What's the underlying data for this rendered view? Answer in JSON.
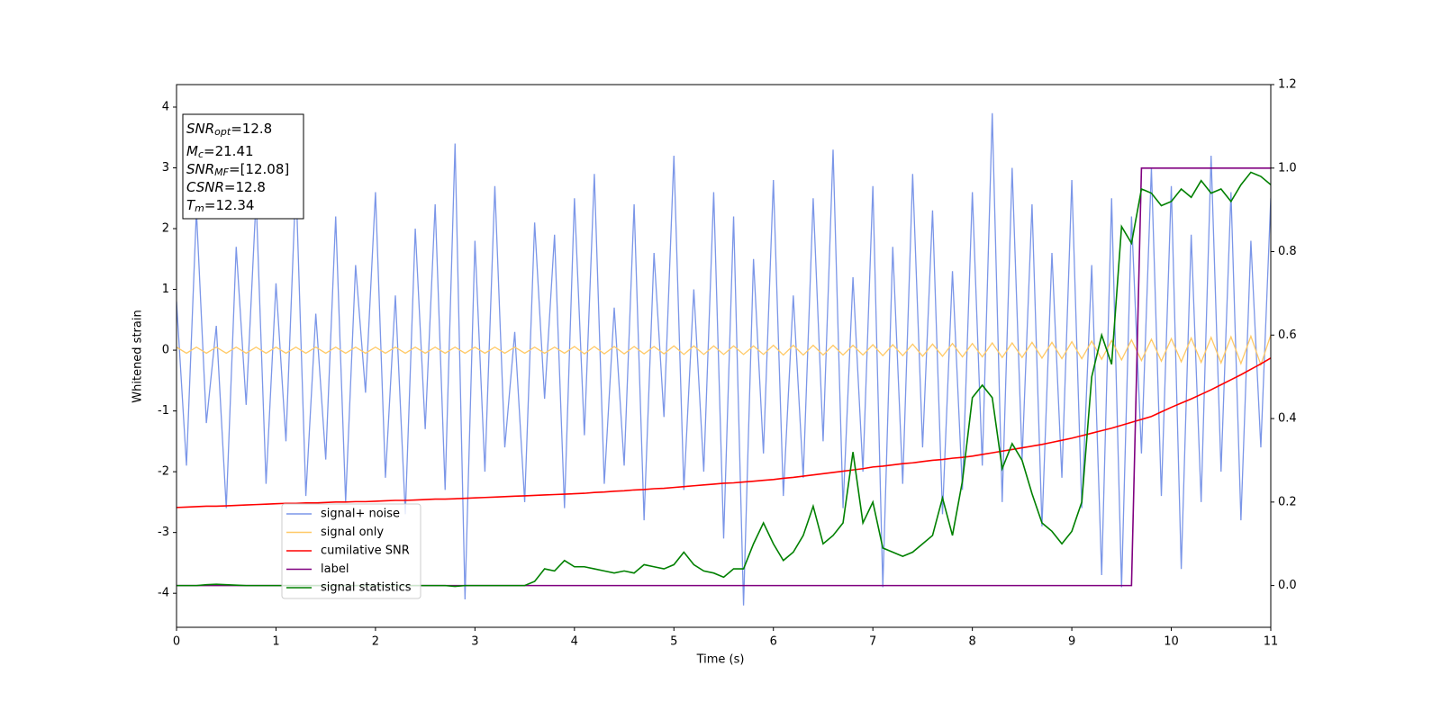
{
  "chart_data": {
    "type": "line",
    "xlabel": "Time (s)",
    "ylabel": "Whitened strain",
    "x": [
      0,
      0.1,
      0.2,
      0.3,
      0.4,
      0.5,
      0.6,
      0.7,
      0.8,
      0.9,
      1,
      1.1,
      1.2,
      1.3,
      1.4,
      1.5,
      1.6,
      1.7,
      1.8,
      1.9,
      2,
      2.1,
      2.2,
      2.3,
      2.4,
      2.5,
      2.6,
      2.7,
      2.8,
      2.9,
      3,
      3.1,
      3.2,
      3.3,
      3.4,
      3.5,
      3.6,
      3.7,
      3.8,
      3.9,
      4,
      4.1,
      4.2,
      4.3,
      4.4,
      4.5,
      4.6,
      4.7,
      4.8,
      4.9,
      5,
      5.1,
      5.2,
      5.3,
      5.4,
      5.5,
      5.6,
      5.7,
      5.8,
      5.9,
      6,
      6.1,
      6.2,
      6.3,
      6.4,
      6.5,
      6.6,
      6.7,
      6.8,
      6.9,
      7,
      7.1,
      7.2,
      7.3,
      7.4,
      7.5,
      7.6,
      7.7,
      7.8,
      7.9,
      8,
      8.1,
      8.2,
      8.3,
      8.4,
      8.5,
      8.6,
      8.7,
      8.8,
      8.9,
      9,
      9.1,
      9.2,
      9.3,
      9.4,
      9.5,
      9.6,
      9.7,
      9.8,
      9.9,
      10,
      10.1,
      10.2,
      10.3,
      10.4,
      10.5,
      10.6,
      10.7,
      10.8,
      10.9,
      11
    ],
    "xlim": [
      0,
      11
    ],
    "xticks": [
      0,
      1,
      2,
      3,
      4,
      5,
      6,
      7,
      8,
      9,
      10,
      11
    ],
    "ylim": [
      -4.56,
      4.37
    ],
    "yticks": [
      -4,
      -3,
      -2,
      -1,
      0,
      1,
      2,
      3,
      4
    ],
    "y2lim": [
      -0.1,
      1.2
    ],
    "y2ticks": [
      {
        "value": 0.0,
        "label": "0.0"
      },
      0.2,
      0.4,
      0.6,
      0.8,
      {
        "value": 1.0,
        "label": "1.0"
      },
      1.2
    ],
    "legend": "lower left",
    "series": [
      {
        "name": "signal+ noise",
        "color": "#7b96e8",
        "values": [
          0.8,
          -1.9,
          2.3,
          -1.2,
          0.4,
          -2.6,
          1.7,
          -0.9,
          2.5,
          -2.2,
          1.1,
          -1.5,
          2.8,
          -2.4,
          0.6,
          -1.8,
          2.2,
          -2.5,
          1.4,
          -0.7,
          2.6,
          -2.1,
          0.9,
          -2.7,
          2.0,
          -1.3,
          2.4,
          -2.3,
          3.4,
          -4.1,
          1.8,
          -2.0,
          2.7,
          -1.6,
          0.3,
          -2.5,
          2.1,
          -0.8,
          1.9,
          -2.6,
          2.5,
          -1.4,
          2.9,
          -2.2,
          0.7,
          -1.9,
          2.4,
          -2.8,
          1.6,
          -1.1,
          3.2,
          -2.3,
          1.0,
          -2.0,
          2.6,
          -3.1,
          2.2,
          -4.2,
          1.5,
          -1.7,
          2.8,
          -2.4,
          0.9,
          -2.1,
          2.5,
          -1.5,
          3.3,
          -2.6,
          1.2,
          -2.0,
          2.7,
          -3.9,
          1.7,
          -2.2,
          2.9,
          -1.6,
          2.3,
          -2.7,
          1.3,
          -2.3,
          2.6,
          -1.9,
          3.9,
          -2.5,
          3.0,
          -1.8,
          2.4,
          -2.9,
          1.6,
          -2.1,
          2.8,
          -2.6,
          1.4,
          -3.7,
          2.5,
          -3.9,
          2.2,
          -1.7,
          3.0,
          -2.4,
          2.7,
          -3.6,
          1.9,
          -2.5,
          3.2,
          -2.0,
          2.6,
          -2.8,
          1.8,
          -1.6,
          2.5
        ]
      },
      {
        "name": "signal only",
        "color": "#ffc966",
        "values": [
          0.05,
          -0.05,
          0.05,
          -0.05,
          0.05,
          -0.05,
          0.05,
          -0.05,
          0.05,
          -0.05,
          0.05,
          -0.05,
          0.05,
          -0.05,
          0.05,
          -0.05,
          0.05,
          -0.05,
          0.05,
          -0.05,
          0.05,
          -0.05,
          0.05,
          -0.05,
          0.05,
          -0.05,
          0.05,
          -0.05,
          0.05,
          -0.05,
          0.05,
          -0.05,
          0.05,
          -0.05,
          0.05,
          -0.05,
          0.05,
          -0.05,
          0.05,
          -0.05,
          0.06,
          -0.06,
          0.06,
          -0.06,
          0.06,
          -0.06,
          0.06,
          -0.06,
          0.06,
          -0.06,
          0.07,
          -0.07,
          0.07,
          -0.07,
          0.07,
          -0.07,
          0.07,
          -0.07,
          0.07,
          -0.07,
          0.08,
          -0.08,
          0.08,
          -0.08,
          0.08,
          -0.08,
          0.08,
          -0.08,
          0.08,
          -0.08,
          0.09,
          -0.09,
          0.09,
          -0.09,
          0.1,
          -0.1,
          0.1,
          -0.1,
          0.11,
          -0.11,
          0.11,
          -0.11,
          0.12,
          -0.12,
          0.12,
          -0.12,
          0.13,
          -0.13,
          0.13,
          -0.14,
          0.14,
          -0.14,
          0.15,
          -0.15,
          0.16,
          -0.16,
          0.17,
          -0.17,
          0.18,
          -0.18,
          0.19,
          -0.19,
          0.2,
          -0.2,
          0.21,
          -0.21,
          0.22,
          -0.22,
          0.23,
          -0.24,
          0.25
        ]
      },
      {
        "name": "cumilative SNR",
        "color": "#ff0000",
        "axis": "y2",
        "values": [
          0.187,
          0.188,
          0.189,
          0.19,
          0.19,
          0.191,
          0.192,
          0.193,
          0.194,
          0.195,
          0.196,
          0.197,
          0.197,
          0.198,
          0.198,
          0.199,
          0.2,
          0.2,
          0.201,
          0.201,
          0.202,
          0.203,
          0.204,
          0.204,
          0.205,
          0.206,
          0.207,
          0.207,
          0.208,
          0.209,
          0.21,
          0.211,
          0.212,
          0.213,
          0.214,
          0.215,
          0.216,
          0.217,
          0.218,
          0.219,
          0.22,
          0.221,
          0.223,
          0.224,
          0.226,
          0.227,
          0.229,
          0.23,
          0.232,
          0.233,
          0.235,
          0.237,
          0.239,
          0.241,
          0.243,
          0.245,
          0.246,
          0.248,
          0.25,
          0.252,
          0.254,
          0.257,
          0.259,
          0.262,
          0.265,
          0.268,
          0.271,
          0.274,
          0.277,
          0.28,
          0.284,
          0.286,
          0.289,
          0.292,
          0.294,
          0.297,
          0.3,
          0.302,
          0.305,
          0.307,
          0.31,
          0.314,
          0.318,
          0.322,
          0.326,
          0.33,
          0.334,
          0.338,
          0.343,
          0.348,
          0.353,
          0.359,
          0.365,
          0.371,
          0.377,
          0.384,
          0.391,
          0.398,
          0.405,
          0.416,
          0.427,
          0.437,
          0.447,
          0.458,
          0.469,
          0.481,
          0.493,
          0.505,
          0.518,
          0.531,
          0.545
        ]
      },
      {
        "name": "label",
        "color": "#800080",
        "axis": "y2",
        "values": [
          0,
          0,
          0,
          0,
          0,
          0,
          0,
          0,
          0,
          0,
          0,
          0,
          0,
          0,
          0,
          0,
          0,
          0,
          0,
          0,
          0,
          0,
          0,
          0,
          0,
          0,
          0,
          0,
          0,
          0,
          0,
          0,
          0,
          0,
          0,
          0,
          0,
          0,
          0,
          0,
          0,
          0,
          0,
          0,
          0,
          0,
          0,
          0,
          0,
          0,
          0,
          0,
          0,
          0,
          0,
          0,
          0,
          0,
          0,
          0,
          0,
          0,
          0,
          0,
          0,
          0,
          0,
          0,
          0,
          0,
          0,
          0,
          0,
          0,
          0,
          0,
          0,
          0,
          0,
          0,
          0,
          0,
          0,
          0,
          0,
          0,
          0,
          0,
          0,
          0,
          0,
          0,
          0,
          0,
          0,
          0,
          0,
          1,
          1,
          1,
          1,
          1,
          1,
          1,
          1,
          1,
          1,
          1,
          1,
          1,
          1
        ]
      },
      {
        "name": "signal statistics",
        "color": "#008000",
        "axis": "y2",
        "values": [
          0.0,
          0.0,
          0.0,
          0.002,
          0.003,
          0.002,
          0.001,
          0.0,
          0.0,
          0.0,
          0.0,
          0.0,
          0.0,
          0.0,
          0.0,
          0.0,
          0.0,
          0.0,
          0.0,
          0.0,
          0.0,
          0.0,
          0.0,
          0.0,
          0.0,
          0.0,
          0.0,
          0.0,
          -0.002,
          0.0,
          0.0,
          0.0,
          0.0,
          0.0,
          0.0,
          0.0,
          0.01,
          0.04,
          0.035,
          0.06,
          0.045,
          0.045,
          0.04,
          0.035,
          0.03,
          0.035,
          0.03,
          0.05,
          0.045,
          0.04,
          0.05,
          0.08,
          0.05,
          0.035,
          0.03,
          0.02,
          0.04,
          0.04,
          0.1,
          0.15,
          0.1,
          0.06,
          0.08,
          0.12,
          0.19,
          0.1,
          0.12,
          0.15,
          0.32,
          0.15,
          0.2,
          0.09,
          0.08,
          0.07,
          0.08,
          0.1,
          0.12,
          0.21,
          0.12,
          0.25,
          0.45,
          0.48,
          0.45,
          0.28,
          0.34,
          0.3,
          0.22,
          0.15,
          0.13,
          0.1,
          0.13,
          0.2,
          0.5,
          0.6,
          0.53,
          0.86,
          0.82,
          0.95,
          0.94,
          0.91,
          0.92,
          0.95,
          0.93,
          0.97,
          0.94,
          0.95,
          0.92,
          0.96,
          0.99,
          0.98,
          0.96
        ]
      }
    ],
    "annotation": {
      "lines": [
        {
          "symbol": "SNR",
          "sub": "opt",
          "text": "=12.8"
        },
        {
          "symbol": "M",
          "sub": "c",
          "text": "=21.41"
        },
        {
          "symbol": "SNR",
          "sub": "MF",
          "text": "=[12.08]"
        },
        {
          "symbol": "CSNR",
          "text": "=12.8"
        },
        {
          "symbol": "T",
          "sub": "m",
          "text": "=12.34"
        }
      ]
    }
  }
}
